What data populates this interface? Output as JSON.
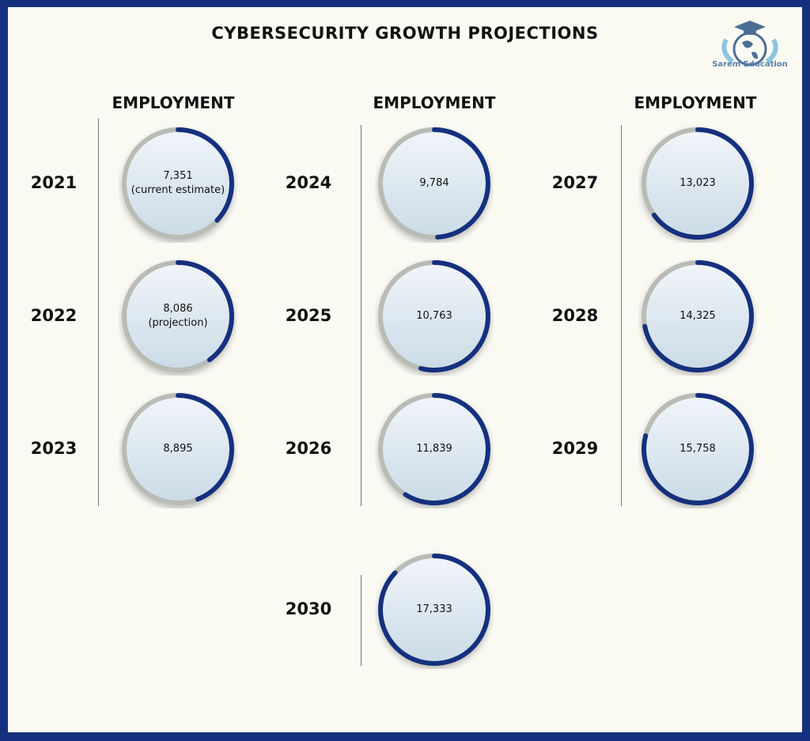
{
  "title": "CYBERSECURITY GROWTH PROJECTIONS",
  "logo": {
    "text": "Sarem Education",
    "icon": "graduation-cap-globe-logo"
  },
  "colors": {
    "border": "#15307e",
    "ring_fill": "#15307e",
    "ring_track": "#b9bbb5",
    "background": "#fafaf3"
  },
  "column_headers": [
    "EMPLOYMENT",
    "EMPLOYMENT",
    "EMPLOYMENT"
  ],
  "chart_data": {
    "type": "progress-rings",
    "title": "CYBERSECURITY GROWTH PROJECTIONS",
    "metric": "EMPLOYMENT",
    "items": [
      {
        "year": "2021",
        "value": "7,351",
        "note": "(current estimate)",
        "fill": 0.37
      },
      {
        "year": "2022",
        "value": "8,086",
        "note": "(projection)",
        "fill": 0.4
      },
      {
        "year": "2023",
        "value": "8,895",
        "note": "",
        "fill": 0.44
      },
      {
        "year": "2024",
        "value": "9,784",
        "note": "",
        "fill": 0.49
      },
      {
        "year": "2025",
        "value": "10,763",
        "note": "",
        "fill": 0.54
      },
      {
        "year": "2026",
        "value": "11,839",
        "note": "",
        "fill": 0.59
      },
      {
        "year": "2027",
        "value": "13,023",
        "note": "",
        "fill": 0.65
      },
      {
        "year": "2028",
        "value": "14,325",
        "note": "",
        "fill": 0.72
      },
      {
        "year": "2029",
        "value": "15,758",
        "note": "",
        "fill": 0.79
      },
      {
        "year": "2030",
        "value": "17,333",
        "note": "",
        "fill": 0.87
      }
    ]
  }
}
